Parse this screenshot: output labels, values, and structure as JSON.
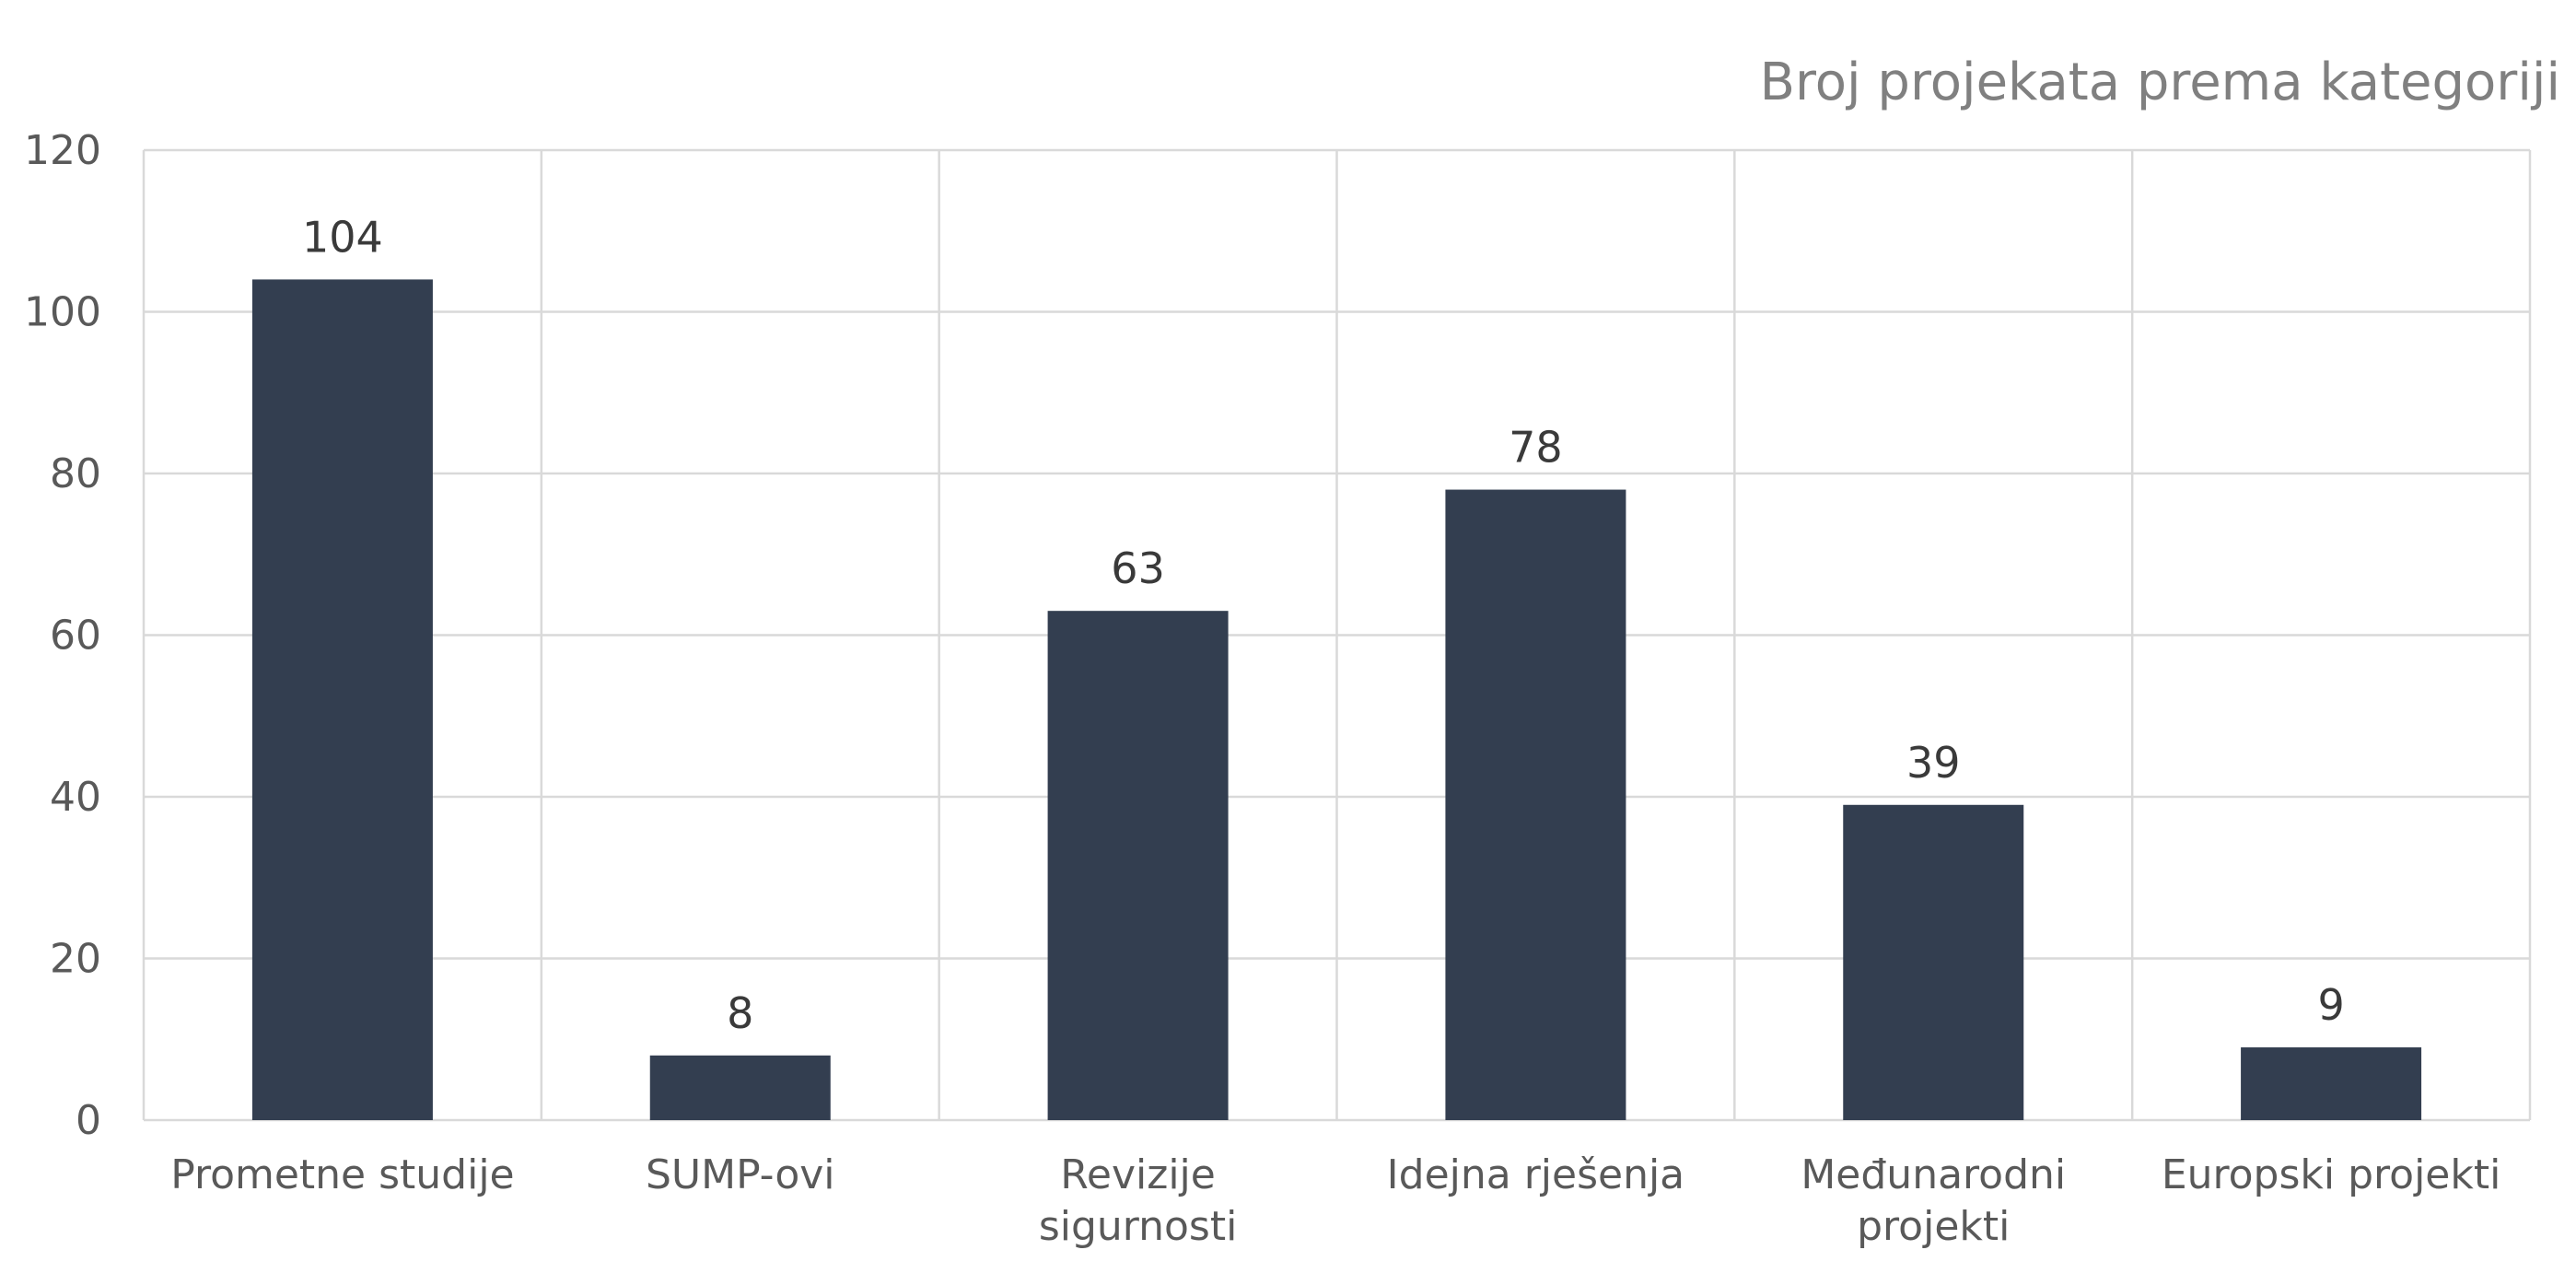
{
  "chart_data": {
    "type": "bar",
    "title": "Broj projekata prema kategoriji",
    "xlabel": "",
    "ylabel": "",
    "categories": [
      [
        "Prometne studije"
      ],
      [
        "SUMP-ovi"
      ],
      [
        "Revizije",
        "sigurnosti"
      ],
      [
        "Idejna rješenja"
      ],
      [
        "Međunarodni",
        "projekti"
      ],
      [
        "Europski projekti"
      ]
    ],
    "values": [
      104,
      8,
      63,
      78,
      39,
      9
    ],
    "data_labels": [
      "104",
      "8",
      "63",
      "78",
      "39",
      "9"
    ],
    "ylim": [
      0,
      120
    ],
    "y_ticks": [
      0,
      20,
      40,
      60,
      80,
      100,
      120
    ],
    "y_tick_labels": [
      "0",
      "20",
      "40",
      "60",
      "80",
      "100",
      "120"
    ],
    "grid": true,
    "vertical_grid": true,
    "legend": "none",
    "colors": {
      "bar": "#333e50",
      "grid": "#d9d9d9",
      "title": "#808080",
      "axis_text": "#595959",
      "data_label": "#3a3a3a"
    }
  }
}
